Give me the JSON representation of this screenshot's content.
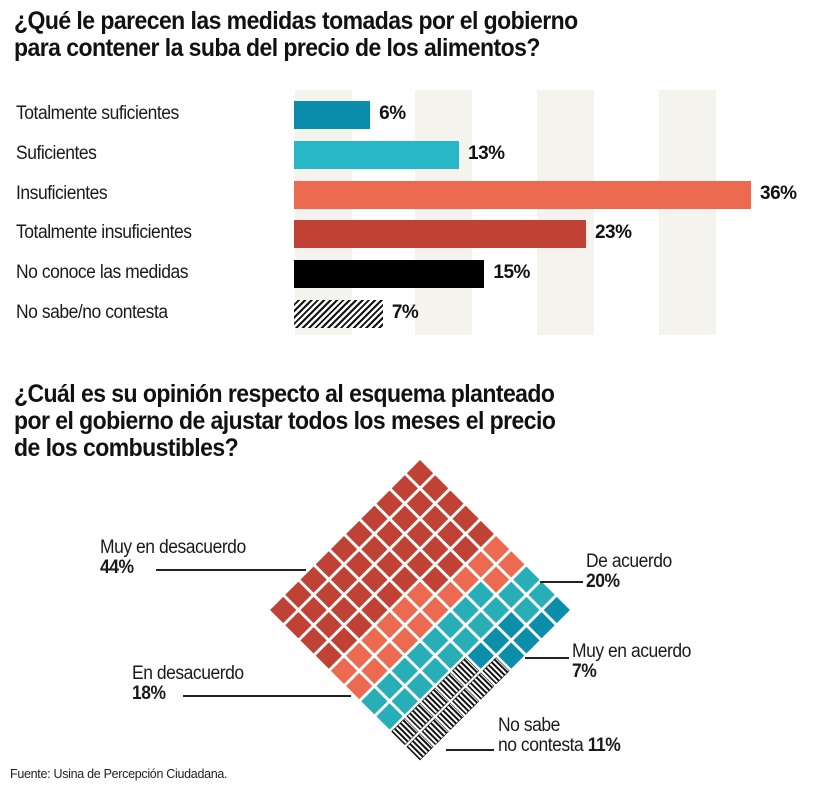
{
  "chart_data": [
    {
      "type": "bar",
      "orientation": "horizontal",
      "title": "¿Qué le parecen las medidas tomadas por el gobierno para contener la suba del precio de los alimentos?",
      "categories": [
        "Totalmente suficientes",
        "Suficientes",
        "Insuficientes",
        "Totalmente insuficientes",
        "No conoce las medidas",
        "No sabe/no contesta"
      ],
      "values": [
        6,
        13,
        36,
        23,
        15,
        7
      ],
      "value_labels": [
        "6%",
        "13%",
        "36%",
        "23%",
        "15%",
        "7%"
      ],
      "colors": [
        "#0b8eab",
        "#27b7c6",
        "#ec6b50",
        "#c04234",
        "#000000",
        "hatched"
      ],
      "unit": "%",
      "xlim": [
        0,
        36
      ],
      "grid": "vertical bands",
      "legend": "none"
    },
    {
      "type": "waffle",
      "title": "¿Cuál es su opinión respecto al esquema planteado por el gobierno de ajustar todos los meses el precio de los combustibles?",
      "grid_size": [
        10,
        10
      ],
      "orientation": "rotated 45°",
      "series": [
        {
          "name": "Muy en desacuerdo",
          "value": 44,
          "label": "44%",
          "color": "#c04234"
        },
        {
          "name": "En desacuerdo",
          "value": 18,
          "label": "18%",
          "color": "#ec6b50"
        },
        {
          "name": "De acuerdo",
          "value": 20,
          "label": "20%",
          "color": "#28aeb6"
        },
        {
          "name": "Muy en acuerdo",
          "value": 7,
          "label": "7%",
          "color": "#0b8eab"
        },
        {
          "name": "No sabe no contesta",
          "value": 11,
          "label": "11%",
          "color": "hatched"
        }
      ],
      "legend": "callouts"
    }
  ],
  "titles": {
    "q1": "¿Qué le parecen las medidas tomadas por el gobierno\npara contener la suba del precio de los alimentos?",
    "q1_line1": "¿Qué le parecen las medidas tomadas por el gobierno",
    "q1_line2": "para contener la suba del precio de los alimentos?",
    "q2_line1": "¿Cuál es su opinión respecto al esquema planteado",
    "q2_line2": "por el gobierno de ajustar todos los meses el precio",
    "q2_line3": "de los combustibles?"
  },
  "waffle_labels": {
    "muy_desacuerdo": {
      "name": "Muy en desacuerdo",
      "pct": "44%"
    },
    "desacuerdo": {
      "name": "En desacuerdo",
      "pct": "18%"
    },
    "acuerdo": {
      "name": "De acuerdo",
      "pct": "20%"
    },
    "muy_acuerdo": {
      "name": "Muy en acuerdo",
      "pct": "7%"
    },
    "ns_nc": {
      "name_line1": "No sabe",
      "name_line2": "no contesta",
      "pct": "11%"
    }
  },
  "source": "Fuente: Usina de Percepción Ciudadana."
}
